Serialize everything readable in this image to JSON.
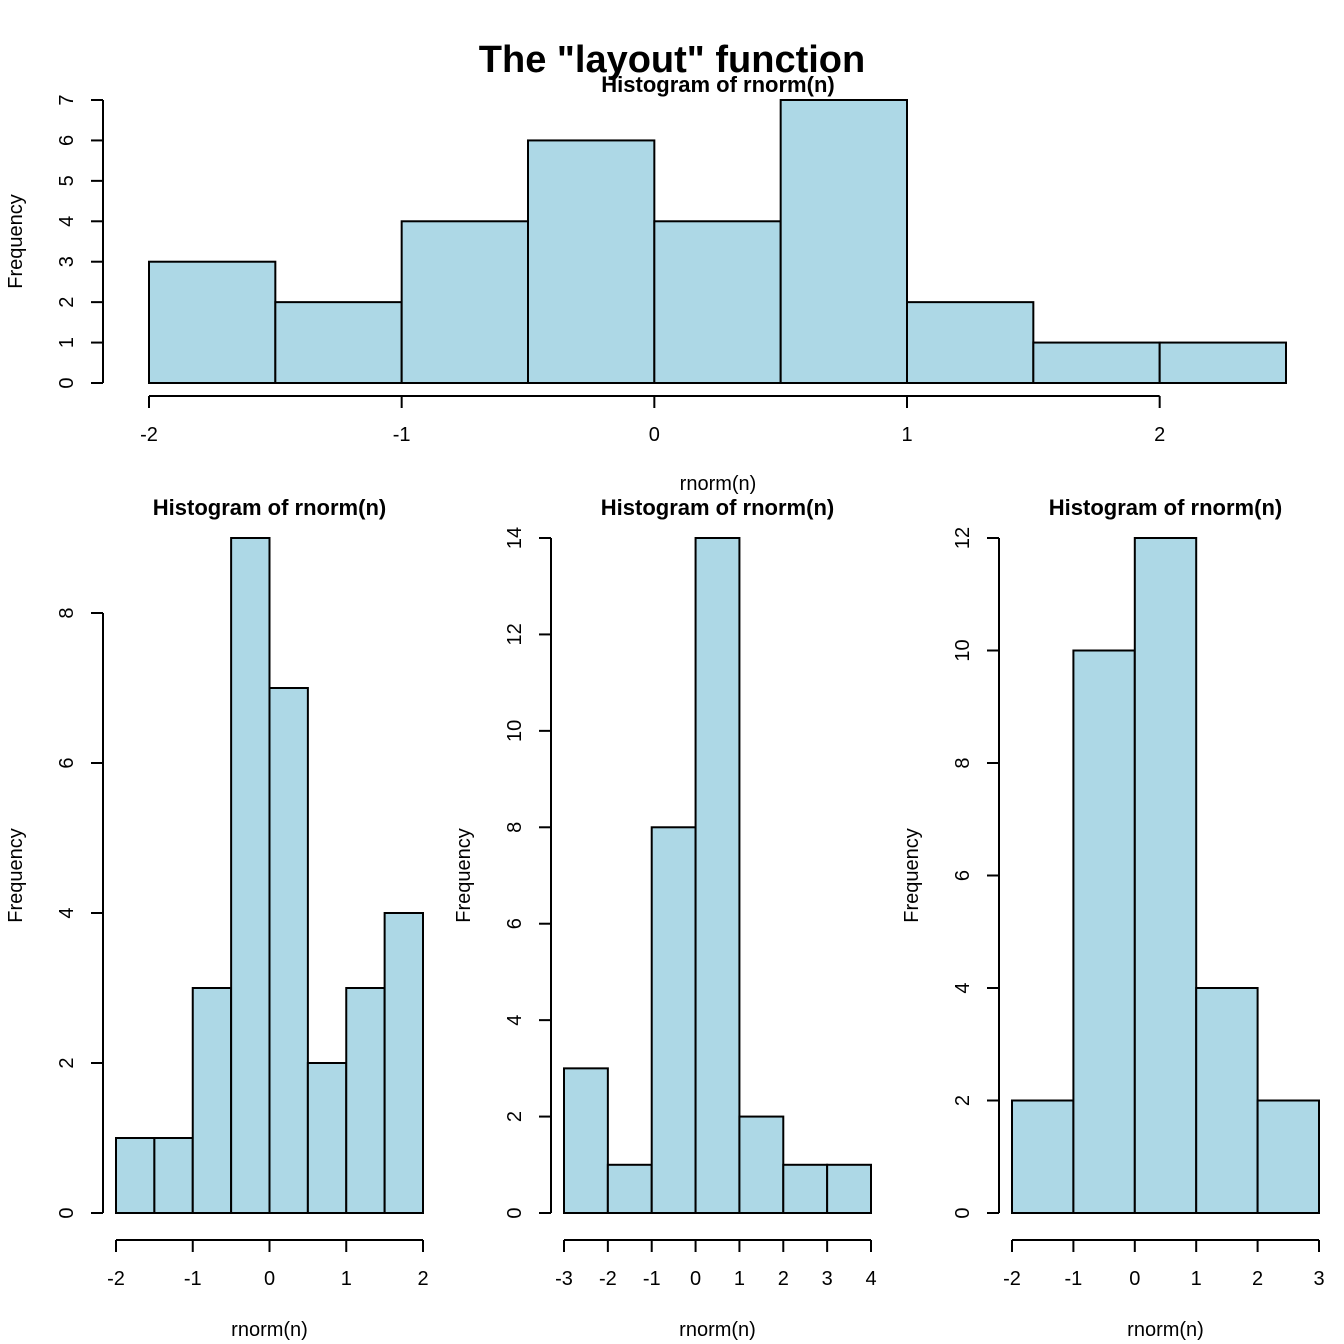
{
  "main_title": "The \"layout\" function",
  "colors": {
    "bar_fill": "#add8e6",
    "bar_stroke": "#000000"
  },
  "chart_data": [
    {
      "type": "bar",
      "title": "Histogram of rnorm(n)",
      "xlabel": "rnorm(n)",
      "ylabel": "Frequency",
      "breaks": [
        -2,
        -1.5,
        -1,
        -0.5,
        0,
        0.5,
        1,
        1.5,
        2,
        2.5
      ],
      "values": [
        3,
        2,
        4,
        6,
        4,
        7,
        2,
        1,
        1
      ],
      "xticks": [
        -2,
        -1,
        0,
        1,
        2
      ],
      "yticks": [
        0,
        1,
        2,
        3,
        4,
        5,
        6,
        7
      ],
      "xlim": [
        -2,
        2.5
      ],
      "ylim": [
        0,
        7
      ]
    },
    {
      "type": "bar",
      "title": "Histogram of rnorm(n)",
      "xlabel": "rnorm(n)",
      "ylabel": "Frequency",
      "breaks": [
        -2,
        -1.5,
        -1,
        -0.5,
        0,
        0.5,
        1,
        1.5,
        2
      ],
      "values": [
        1,
        1,
        3,
        9,
        7,
        2,
        3,
        4
      ],
      "xticks": [
        -2,
        -1,
        0,
        1,
        2
      ],
      "yticks": [
        0,
        2,
        4,
        6,
        8
      ],
      "xlim": [
        -2,
        2
      ],
      "ylim": [
        0,
        9
      ]
    },
    {
      "type": "bar",
      "title": "Histogram of rnorm(n)",
      "xlabel": "rnorm(n)",
      "ylabel": "Frequency",
      "breaks": [
        -3,
        -2,
        -1,
        0,
        1,
        2,
        3,
        4
      ],
      "values": [
        3,
        1,
        8,
        14,
        2,
        1,
        1
      ],
      "xticks": [
        -3,
        -2,
        -1,
        0,
        1,
        2,
        3,
        4
      ],
      "yticks": [
        0,
        2,
        4,
        6,
        8,
        10,
        12,
        14
      ],
      "xlim": [
        -3,
        4
      ],
      "ylim": [
        0,
        14
      ]
    },
    {
      "type": "bar",
      "title": "Histogram of rnorm(n)",
      "xlabel": "rnorm(n)",
      "ylabel": "Frequency",
      "breaks": [
        -2,
        -1,
        0,
        1,
        2,
        3
      ],
      "values": [
        2,
        10,
        12,
        4,
        2
      ],
      "xticks": [
        -2,
        -1,
        0,
        1,
        2,
        3
      ],
      "yticks": [
        0,
        2,
        4,
        6,
        8,
        10,
        12
      ],
      "xlim": [
        -2,
        3
      ],
      "ylim": [
        0,
        12
      ]
    }
  ]
}
